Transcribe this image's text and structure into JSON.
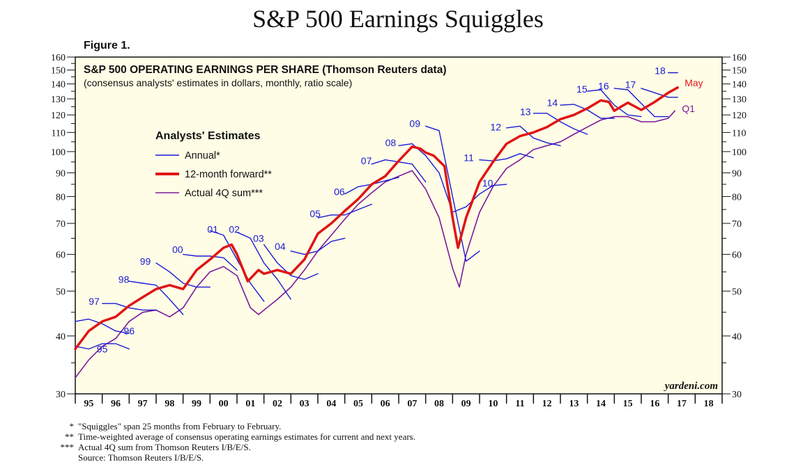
{
  "page": {
    "title": "S&P 500 Earnings Squiggles",
    "figure_label": "Figure 1.",
    "footnotes": [
      {
        "mark": "*",
        "text": "\"Squiggles\" span 25 months from February to February."
      },
      {
        "mark": "**",
        "text": "Time-weighted average of consensus operating earnings estimates for current and next years."
      },
      {
        "mark": "***",
        "text": "Actual 4Q sum from Thomson Reuters I/B/E/S."
      },
      {
        "mark": "",
        "text": "Source: Thomson Reuters I/B/E/S."
      }
    ]
  },
  "chart_data": {
    "type": "line",
    "title": "S&P 500 OPERATING EARNINGS PER SHARE (Thomson Reuters data)",
    "subtitle": "(consensus analysts' estimates in dollars, monthly, ratio scale)",
    "source_label": "yardeni.com",
    "y_scale": "log",
    "ylim": [
      30,
      160
    ],
    "xlim": [
      1995,
      2019
    ],
    "y_ticks": [
      30,
      40,
      50,
      60,
      70,
      80,
      90,
      100,
      110,
      120,
      130,
      140,
      150,
      160
    ],
    "x_tick_labels": [
      "95",
      "96",
      "97",
      "98",
      "99",
      "00",
      "01",
      "02",
      "03",
      "04",
      "05",
      "06",
      "07",
      "08",
      "09",
      "10",
      "11",
      "12",
      "13",
      "14",
      "15",
      "16",
      "17",
      "18"
    ],
    "legend": {
      "title": "Analysts' Estimates",
      "entries": [
        {
          "label": "Annual*",
          "color": "#1a1ad6"
        },
        {
          "label": "12-month forward**",
          "color": "#e01414"
        },
        {
          "label": "Actual 4Q sum***",
          "color": "#7a1a9a"
        }
      ]
    },
    "end_labels": {
      "forward": "May",
      "actual": "Q1"
    },
    "colors": {
      "annual": "#1a1ad6",
      "forward": "#e01414",
      "actual": "#7a1a9a",
      "plot_bg": "#fffde6"
    },
    "forward_12m": {
      "x": [
        1995.0,
        1995.5,
        1996.0,
        1996.5,
        1997.0,
        1997.5,
        1998.0,
        1998.5,
        1999.0,
        1999.5,
        2000.0,
        2000.5,
        2000.8,
        2001.0,
        2001.4,
        2001.8,
        2002.0,
        2002.5,
        2003.0,
        2003.5,
        2004.0,
        2004.5,
        2005.0,
        2005.5,
        2006.0,
        2006.5,
        2007.0,
        2007.5,
        2007.8,
        2008.0,
        2008.3,
        2008.7,
        2009.0,
        2009.2,
        2009.5,
        2010.0,
        2010.5,
        2011.0,
        2011.5,
        2012.0,
        2012.5,
        2013.0,
        2013.5,
        2014.0,
        2014.5,
        2014.8,
        2015.0,
        2015.5,
        2016.0,
        2016.5,
        2017.0,
        2017.35
      ],
      "y": [
        37.5,
        41,
        43,
        44,
        46.5,
        48.5,
        50.5,
        51.5,
        50.5,
        55.5,
        58.5,
        62,
        63,
        60,
        52.5,
        55.5,
        54.5,
        55.5,
        54.5,
        58.5,
        66.5,
        70,
        74.5,
        79,
        85,
        88.5,
        95.5,
        102.5,
        101.5,
        99.5,
        98,
        93,
        72,
        62,
        72,
        86,
        95,
        104,
        108,
        110,
        113,
        117.5,
        120,
        124,
        129,
        128,
        122.5,
        127.5,
        123,
        128,
        134,
        137.5
      ]
    },
    "actual_4q": {
      "x": [
        1995.0,
        1995.5,
        1996.0,
        1996.5,
        1997.0,
        1997.5,
        1998.0,
        1998.5,
        1999.0,
        1999.5,
        2000.0,
        2000.5,
        2001.0,
        2001.5,
        2001.8,
        2002.0,
        2002.5,
        2003.0,
        2003.5,
        2004.0,
        2004.5,
        2005.0,
        2005.5,
        2006.0,
        2006.5,
        2007.0,
        2007.5,
        2008.0,
        2008.5,
        2009.0,
        2009.25,
        2009.5,
        2010.0,
        2010.5,
        2011.0,
        2011.5,
        2012.0,
        2012.5,
        2013.0,
        2013.5,
        2014.0,
        2014.5,
        2015.0,
        2015.5,
        2016.0,
        2016.5,
        2017.0,
        2017.25
      ],
      "y": [
        32.5,
        35.5,
        38,
        39.5,
        43,
        45,
        45.5,
        44,
        46,
        51,
        55,
        56.5,
        54,
        46,
        44.5,
        45.5,
        48,
        51,
        55.5,
        61,
        66,
        71.5,
        77,
        81.5,
        86,
        88.5,
        91,
        83,
        72,
        56,
        51,
        60,
        74,
        84,
        92,
        96,
        101,
        103,
        105,
        109,
        113,
        117,
        119,
        119,
        116,
        116,
        118,
        122.5
      ]
    },
    "annual_squiggles": [
      {
        "label": "95",
        "x": [
          1995.0,
          1995.5,
          1996.0,
          1996.5,
          1997.0
        ],
        "y": [
          38,
          37.5,
          38.5,
          38.5,
          37.5
        ]
      },
      {
        "label": "96",
        "x": [
          1995.0,
          1995.5,
          1996.0,
          1996.5,
          1997.0
        ],
        "y": [
          43,
          43.5,
          42.5,
          41,
          40.5
        ]
      },
      {
        "label": "97",
        "x": [
          1996.0,
          1996.5,
          1997.0,
          1997.5,
          1998.0
        ],
        "y": [
          47,
          47,
          46,
          45.5,
          45.5
        ]
      },
      {
        "label": "98",
        "x": [
          1997.0,
          1997.5,
          1998.0,
          1998.5,
          1999.0
        ],
        "y": [
          52.5,
          52,
          51.5,
          48,
          44.5
        ]
      },
      {
        "label": "99",
        "x": [
          1998.0,
          1998.5,
          1999.0,
          1999.5,
          2000.0
        ],
        "y": [
          57.5,
          55,
          52,
          51,
          51
        ]
      },
      {
        "label": "00",
        "x": [
          1999.0,
          1999.5,
          2000.0,
          2000.5,
          2001.0
        ],
        "y": [
          60,
          59.5,
          59.5,
          59,
          55.5
        ]
      },
      {
        "label": "01",
        "x": [
          2000.0,
          2000.5,
          2001.0,
          2001.5,
          2002.0
        ],
        "y": [
          67.5,
          66,
          58.5,
          52,
          47.5
        ]
      },
      {
        "label": "02",
        "x": [
          2001.0,
          2001.5,
          2002.0,
          2002.5,
          2003.0
        ],
        "y": [
          67,
          65,
          57.5,
          53,
          48
        ]
      },
      {
        "label": "03",
        "x": [
          2002.0,
          2002.5,
          2003.0,
          2003.5,
          2004.0
        ],
        "y": [
          63,
          57.5,
          54,
          53,
          54.5
        ]
      },
      {
        "label": "04",
        "x": [
          2003.0,
          2003.5,
          2004.0,
          2004.5,
          2005.0
        ],
        "y": [
          61,
          60,
          61,
          64,
          65
        ]
      },
      {
        "label": "05",
        "x": [
          2004.0,
          2004.5,
          2005.0,
          2005.5,
          2006.0
        ],
        "y": [
          72,
          73,
          73,
          75,
          77
        ]
      },
      {
        "label": "06",
        "x": [
          2005.0,
          2005.5,
          2006.0,
          2006.5,
          2007.0
        ],
        "y": [
          81,
          84,
          85,
          86.5,
          88
        ]
      },
      {
        "label": "07",
        "x": [
          2006.0,
          2006.5,
          2007.0,
          2007.5,
          2008.0
        ],
        "y": [
          94,
          96,
          95,
          94,
          86
        ]
      },
      {
        "label": "08",
        "x": [
          2007.0,
          2007.5,
          2008.0,
          2008.5,
          2009.0
        ],
        "y": [
          103,
          104,
          98,
          90,
          74
        ]
      },
      {
        "label": "09",
        "x": [
          2008.0,
          2008.5,
          2009.0,
          2009.5,
          2010.0
        ],
        "y": [
          113.5,
          111,
          80,
          58,
          61
        ]
      },
      {
        "label": "10",
        "x": [
          2009.0,
          2009.5,
          2010.0,
          2010.5,
          2011.0
        ],
        "y": [
          74,
          76,
          81,
          84.5,
          85
        ]
      },
      {
        "label": "11",
        "x": [
          2010.0,
          2010.5,
          2011.0,
          2011.5,
          2012.0
        ],
        "y": [
          96,
          95.5,
          96.5,
          99,
          97
        ]
      },
      {
        "label": "12",
        "x": [
          2011.0,
          2011.5,
          2012.0,
          2012.5,
          2013.0
        ],
        "y": [
          112.5,
          113.5,
          107,
          104.5,
          103
        ]
      },
      {
        "label": "13",
        "x": [
          2012.0,
          2012.5,
          2013.0,
          2013.5,
          2014.0
        ],
        "y": [
          121,
          121,
          116,
          112,
          109
        ]
      },
      {
        "label": "14",
        "x": [
          2013.0,
          2013.5,
          2014.0,
          2014.5,
          2015.0
        ],
        "y": [
          126,
          126.5,
          123,
          118,
          118
        ]
      },
      {
        "label": "15",
        "x": [
          2014.0,
          2014.5,
          2015.0,
          2015.5,
          2016.0
        ],
        "y": [
          135,
          136,
          126,
          120,
          119
        ]
      },
      {
        "label": "16",
        "x": [
          2015.0,
          2015.5,
          2016.0,
          2016.5,
          2017.0
        ],
        "y": [
          137,
          136,
          127,
          119,
          119
        ]
      },
      {
        "label": "17",
        "x": [
          2016.0,
          2016.5,
          2017.0,
          2017.35
        ],
        "y": [
          137,
          134,
          131,
          131
        ]
      },
      {
        "label": "18",
        "x": [
          2017.0,
          2017.35
        ],
        "y": [
          148,
          148
        ]
      }
    ],
    "squiggle_label_positions": [
      {
        "label": "95",
        "x": 1996.0,
        "y": 37.5
      },
      {
        "label": "96",
        "x": 1997.0,
        "y": 41
      },
      {
        "label": "97",
        "x": 1995.7,
        "y": 47.5
      },
      {
        "label": "98",
        "x": 1996.8,
        "y": 53
      },
      {
        "label": "99",
        "x": 1997.6,
        "y": 58
      },
      {
        "label": "00",
        "x": 1998.8,
        "y": 61.5
      },
      {
        "label": "01",
        "x": 2000.1,
        "y": 68
      },
      {
        "label": "02",
        "x": 2000.9,
        "y": 68
      },
      {
        "label": "03",
        "x": 2001.8,
        "y": 65
      },
      {
        "label": "04",
        "x": 2002.6,
        "y": 62.5
      },
      {
        "label": "05",
        "x": 2003.9,
        "y": 73.5
      },
      {
        "label": "06",
        "x": 2004.8,
        "y": 82
      },
      {
        "label": "07",
        "x": 2005.8,
        "y": 95.5
      },
      {
        "label": "08",
        "x": 2006.7,
        "y": 104.5
      },
      {
        "label": "09",
        "x": 2007.6,
        "y": 115
      },
      {
        "label": "10",
        "x": 2010.3,
        "y": 85.5
      },
      {
        "label": "11",
        "x": 2009.6,
        "y": 97
      },
      {
        "label": "12",
        "x": 2010.6,
        "y": 113
      },
      {
        "label": "13",
        "x": 2011.7,
        "y": 122
      },
      {
        "label": "14",
        "x": 2012.7,
        "y": 127.5
      },
      {
        "label": "15",
        "x": 2013.8,
        "y": 136.5
      },
      {
        "label": "16",
        "x": 2014.6,
        "y": 138.5
      },
      {
        "label": "17",
        "x": 2015.6,
        "y": 139.5
      },
      {
        "label": "18",
        "x": 2016.7,
        "y": 149.5
      }
    ]
  }
}
